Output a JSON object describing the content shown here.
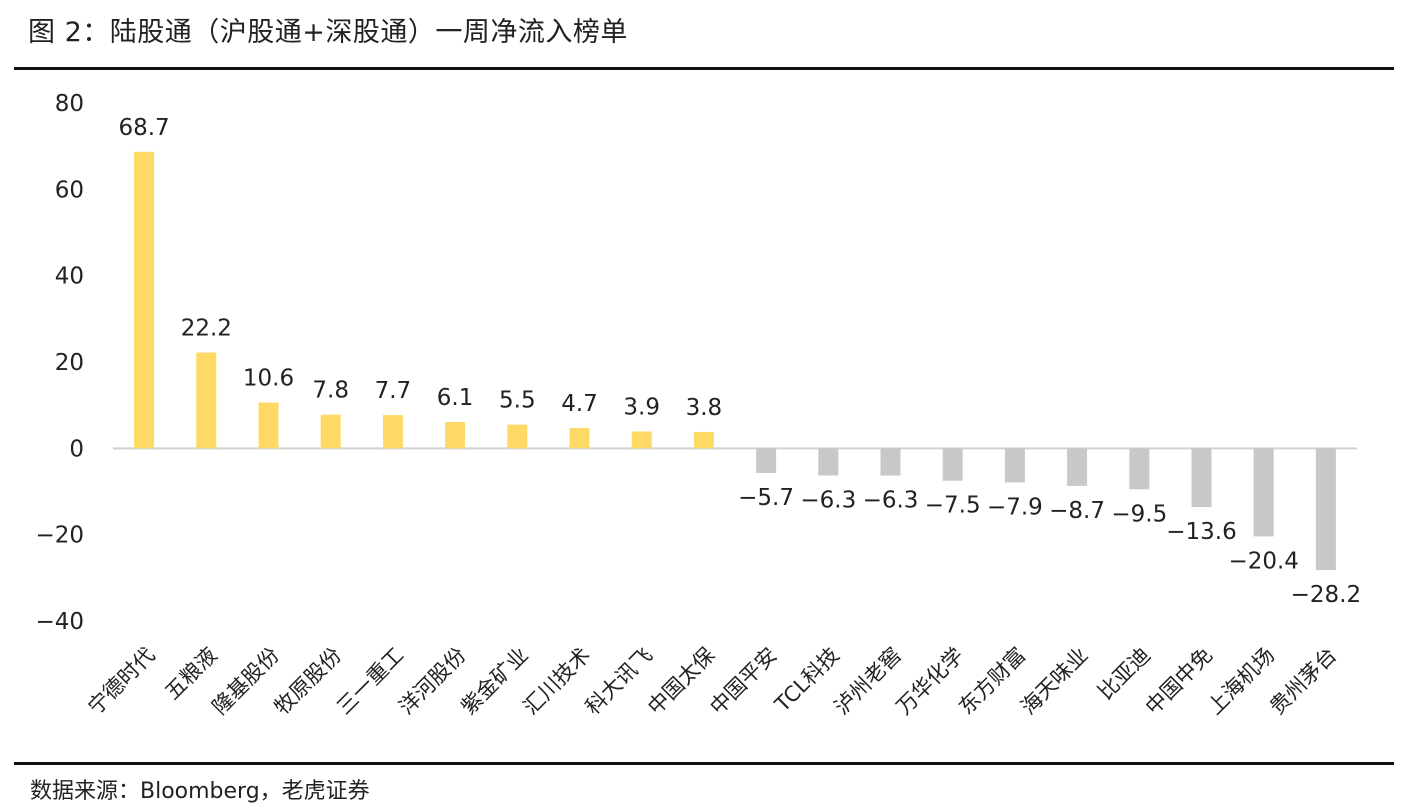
{
  "title": "图 2：陆股通（沪股通+深股通）一周净流入榜单",
  "source": "数据来源：Bloomberg，老虎证券",
  "colors": {
    "positive": "#FFD966",
    "negative": "#C8C8C8",
    "axis": "#D0D0D0"
  },
  "chart_data": {
    "type": "bar",
    "categories": [
      "宁德时代",
      "五粮液",
      "隆基股份",
      "牧原股份",
      "三一重工",
      "洋河股份",
      "紫金矿业",
      "汇川技术",
      "科大讯飞",
      "中国太保",
      "中国平安",
      "TCL科技",
      "泸州老窖",
      "万华化学",
      "东方财富",
      "海天味业",
      "比亚迪",
      "中国中免",
      "上海机场",
      "贵州茅台"
    ],
    "values": [
      68.7,
      22.2,
      10.6,
      7.8,
      7.7,
      6.1,
      5.5,
      4.7,
      3.9,
      3.8,
      -5.7,
      -6.3,
      -6.3,
      -7.5,
      -7.9,
      -8.7,
      -9.5,
      -13.6,
      -20.4,
      -28.2
    ],
    "value_labels": [
      "68.7",
      "22.2",
      "10.6",
      "7.8",
      "7.7",
      "6.1",
      "5.5",
      "4.7",
      "3.9",
      "3.8",
      "−5.7",
      "−6.3",
      "−6.3",
      "−7.5",
      "−7.9",
      "−8.7",
      "−9.5",
      "−13.6",
      "−20.4",
      "−28.2"
    ],
    "ylim": [
      -40,
      80
    ],
    "yticks": [
      80,
      60,
      40,
      20,
      0,
      -20,
      -40
    ],
    "ytick_labels": [
      "80",
      "60",
      "40",
      "20",
      "0",
      "−20",
      "−40"
    ],
    "grid": false,
    "legend": "none"
  }
}
